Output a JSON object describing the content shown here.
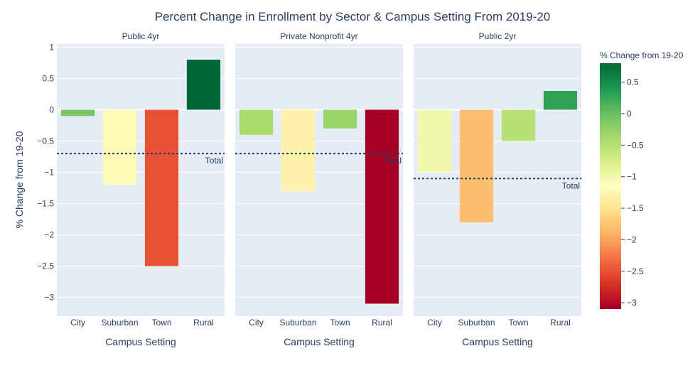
{
  "chart_data": {
    "type": "bar",
    "title": "Percent Change in Enrollment by Sector & Campus Setting From 2019-20",
    "xlabel": "Campus Setting",
    "ylabel": "% Change from 19-20",
    "categories": [
      "City",
      "Suburban",
      "Town",
      "Rural"
    ],
    "ylim": [
      -3.3,
      1.05
    ],
    "yticks": [
      1,
      0.5,
      0,
      -0.5,
      -1,
      -1.5,
      -2,
      -2.5,
      -3
    ],
    "ytick_labels": [
      "1",
      "0.5",
      "0",
      "−0.5",
      "−1",
      "−1.5",
      "−2",
      "−2.5",
      "−3"
    ],
    "grid": true,
    "panels": [
      {
        "name": "Public 4yr",
        "values": [
          -0.1,
          -1.2,
          -2.5,
          0.8
        ],
        "total": -0.7,
        "total_label": "Total"
      },
      {
        "name": "Private Nonprofit 4yr",
        "values": [
          -0.4,
          -1.3,
          -0.3,
          -3.1
        ],
        "total": -0.7,
        "total_label": "Total"
      },
      {
        "name": "Public 2yr",
        "values": [
          -1.0,
          -1.8,
          -0.5,
          0.3
        ],
        "total": -1.1,
        "total_label": "Total"
      }
    ],
    "colorbar": {
      "title": "% Change from 19-20",
      "colorscale": "RdYlGn",
      "range": [
        -3.1,
        0.8
      ],
      "ticks": [
        0.5,
        0,
        -0.5,
        -1,
        -1.5,
        -2,
        -2.5,
        -3
      ],
      "tick_labels": [
        "0.5",
        "0",
        "−0.5",
        "−1",
        "−1.5",
        "−2",
        "−2.5",
        "−3"
      ]
    },
    "colors": {
      "plot_bg": "#e5ecf6",
      "grid": "#ffffff",
      "text": "#2a3f5f",
      "reference_line": "#2a3f5f"
    }
  }
}
